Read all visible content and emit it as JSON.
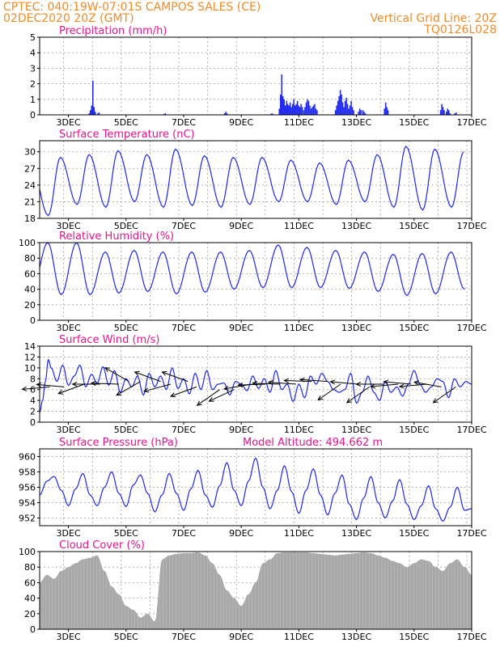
{
  "header": {
    "line1": "CPTEC:   040:19W-07:01S   CAMPOS SALES (CE)",
    "line2_left": "02DEC2020 20Z (GMT)",
    "line2_right": "Vertical Grid Line: 20Z",
    "line3_right": "TQ0126L028"
  },
  "colors": {
    "header": "#f08c28",
    "title": "#e6148c",
    "series": "#1e28f0",
    "cloud": "#a8a8a8"
  },
  "chart_data": [
    {
      "type": "bar",
      "title": "Precipitation (mm/h)",
      "x_tick_labels": [
        "3DEC",
        "5DEC",
        "7DEC",
        "9DEC",
        "11DEC",
        "13DEC",
        "15DEC",
        "17DEC"
      ],
      "xlim_days": [
        2.0,
        17.0
      ],
      "ylim": [
        0,
        5
      ],
      "y_ticks": [
        0,
        1,
        2,
        3,
        4,
        5
      ],
      "grid": true,
      "events": [
        {
          "day": 3.7,
          "values": [
            0.1,
            0.3,
            0.6,
            2.2,
            0.5,
            0.2
          ]
        },
        {
          "day": 4.0,
          "values": [
            0.1,
            0.15
          ]
        },
        {
          "day": 6.3,
          "values": [
            0.05,
            0.1
          ]
        },
        {
          "day": 8.4,
          "values": [
            0.1,
            0.2,
            0.1
          ]
        },
        {
          "day": 10.0,
          "values": [
            0.05,
            0.1,
            0.05
          ]
        },
        {
          "day": 10.3,
          "values": [
            0.4,
            1.3,
            2.6,
            1.2,
            1.0,
            0.6,
            0.9,
            0.7,
            0.6,
            0.8,
            0.5,
            0.7,
            1.0,
            0.6,
            0.7,
            0.9,
            0.6,
            0.5,
            0.7,
            0.5
          ]
        },
        {
          "day": 11.15,
          "values": [
            0.3,
            0.5,
            0.8,
            1.0,
            0.9,
            0.6,
            0.4,
            0.5,
            0.6,
            0.7,
            0.4,
            0.3
          ]
        },
        {
          "day": 12.25,
          "values": [
            0.3,
            0.6,
            0.9,
            1.2,
            1.6,
            1.3,
            0.8,
            0.5,
            0.9,
            1.1,
            0.7,
            0.4,
            0.6,
            0.9,
            0.5,
            0.3
          ]
        },
        {
          "day": 13.05,
          "values": [
            0.2,
            0.4,
            0.3
          ]
        },
        {
          "day": 13.2,
          "values": [
            0.3,
            0.2,
            0.1
          ]
        },
        {
          "day": 13.95,
          "values": [
            0.4,
            0.8,
            0.5,
            0.3
          ]
        },
        {
          "day": 15.9,
          "values": [
            0.3,
            0.7,
            0.5,
            0.3
          ]
        },
        {
          "day": 16.1,
          "values": [
            0.2,
            0.4,
            0.3,
            0.1
          ]
        },
        {
          "day": 16.4,
          "values": [
            0.1,
            0.15
          ]
        }
      ]
    },
    {
      "type": "line",
      "title": "Surface Temperature (nC)",
      "x_tick_labels": [
        "3DEC",
        "5DEC",
        "7DEC",
        "9DEC",
        "11DEC",
        "13DEC",
        "15DEC",
        "17DEC"
      ],
      "xlim_days": [
        2.0,
        17.0
      ],
      "ylim": [
        18,
        32
      ],
      "y_ticks": [
        18,
        21,
        24,
        27,
        30
      ],
      "grid": true,
      "diurnal": {
        "max_day_offset": 0.72,
        "min_day_offset": 0.3
      },
      "daily_max": [
        {
          "day": 1,
          "value": 26.0
        },
        {
          "day": 2,
          "value": 27.5
        },
        {
          "day": 3,
          "value": 29.0
        },
        {
          "day": 4,
          "value": 29.5
        },
        {
          "day": 5,
          "value": 30.2
        },
        {
          "day": 6,
          "value": 29.5
        },
        {
          "day": 7,
          "value": 30.5
        },
        {
          "day": 8,
          "value": 29.3
        },
        {
          "day": 9,
          "value": 29.0
        },
        {
          "day": 10,
          "value": 29.0
        },
        {
          "day": 11,
          "value": 28.5
        },
        {
          "day": 12,
          "value": 28.0
        },
        {
          "day": 13,
          "value": 28.5
        },
        {
          "day": 14,
          "value": 29.5
        },
        {
          "day": 15,
          "value": 31.0
        },
        {
          "day": 16,
          "value": 30.5
        },
        {
          "day": 17,
          "value": 30.0
        }
      ],
      "daily_min": [
        {
          "day": 2,
          "value": 20.5
        },
        {
          "day": 3,
          "value": 18.5
        },
        {
          "day": 4,
          "value": 20.5
        },
        {
          "day": 5,
          "value": 20.0
        },
        {
          "day": 6,
          "value": 21.0
        },
        {
          "day": 7,
          "value": 20.0
        },
        {
          "day": 8,
          "value": 20.3
        },
        {
          "day": 9,
          "value": 20.0
        },
        {
          "day": 10,
          "value": 20.5
        },
        {
          "day": 11,
          "value": 21.0
        },
        {
          "day": 12,
          "value": 21.0
        },
        {
          "day": 13,
          "value": 20.5
        },
        {
          "day": 14,
          "value": 21.0
        },
        {
          "day": 15,
          "value": 20.0
        },
        {
          "day": 16,
          "value": 19.5
        },
        {
          "day": 17,
          "value": 20.0
        }
      ]
    },
    {
      "type": "line",
      "title": "Relative Humidity (%)",
      "x_tick_labels": [
        "3DEC",
        "5DEC",
        "7DEC",
        "9DEC",
        "11DEC",
        "13DEC",
        "15DEC",
        "17DEC"
      ],
      "xlim_days": [
        2.0,
        17.0
      ],
      "ylim": [
        0,
        100
      ],
      "y_ticks": [
        0,
        20,
        40,
        60,
        80,
        100
      ],
      "grid": true,
      "diurnal": {
        "max_day_offset": 0.28,
        "min_day_offset": 0.75
      },
      "daily_max": [
        {
          "day": 2,
          "value": 86
        },
        {
          "day": 3,
          "value": 100
        },
        {
          "day": 4,
          "value": 100
        },
        {
          "day": 5,
          "value": 88
        },
        {
          "day": 6,
          "value": 90
        },
        {
          "day": 7,
          "value": 88
        },
        {
          "day": 8,
          "value": 88
        },
        {
          "day": 9,
          "value": 88
        },
        {
          "day": 10,
          "value": 90
        },
        {
          "day": 11,
          "value": 97
        },
        {
          "day": 12,
          "value": 94
        },
        {
          "day": 13,
          "value": 90
        },
        {
          "day": 14,
          "value": 88
        },
        {
          "day": 15,
          "value": 85
        },
        {
          "day": 16,
          "value": 86
        },
        {
          "day": 17,
          "value": 88
        }
      ],
      "daily_min": [
        {
          "day": 1,
          "value": 42
        },
        {
          "day": 2,
          "value": 40
        },
        {
          "day": 3,
          "value": 33
        },
        {
          "day": 4,
          "value": 33
        },
        {
          "day": 5,
          "value": 35
        },
        {
          "day": 6,
          "value": 37
        },
        {
          "day": 7,
          "value": 34
        },
        {
          "day": 8,
          "value": 36
        },
        {
          "day": 9,
          "value": 40
        },
        {
          "day": 10,
          "value": 42
        },
        {
          "day": 11,
          "value": 42
        },
        {
          "day": 12,
          "value": 42
        },
        {
          "day": 13,
          "value": 41
        },
        {
          "day": 14,
          "value": 37
        },
        {
          "day": 15,
          "value": 32
        },
        {
          "day": 16,
          "value": 34
        },
        {
          "day": 17,
          "value": 40
        }
      ]
    },
    {
      "type": "line",
      "title": "Surface Wind (m/s)",
      "x_tick_labels": [
        "3DEC",
        "5DEC",
        "7DEC",
        "9DEC",
        "11DEC",
        "13DEC",
        "15DEC",
        "17DEC"
      ],
      "xlim_days": [
        2.0,
        17.0
      ],
      "ylim": [
        0,
        14
      ],
      "y_ticks": [
        0,
        2,
        4,
        6,
        8,
        10,
        12,
        14
      ],
      "grid": true,
      "x_days": [
        2.0,
        2.1,
        2.2,
        2.3,
        2.4,
        2.6,
        2.8,
        3.0,
        3.2,
        3.4,
        3.6,
        3.8,
        4.0,
        4.2,
        4.4,
        4.6,
        4.8,
        5.0,
        5.2,
        5.4,
        5.6,
        5.8,
        6.0,
        6.2,
        6.4,
        6.6,
        6.8,
        7.0,
        7.2,
        7.4,
        7.6,
        7.8,
        8.0,
        8.2,
        8.4,
        8.6,
        8.8,
        9.0,
        9.2,
        9.4,
        9.6,
        9.8,
        10.0,
        10.2,
        10.4,
        10.6,
        10.8,
        11.0,
        11.2,
        11.4,
        11.6,
        11.8,
        12.0,
        12.2,
        12.4,
        12.6,
        12.8,
        13.0,
        13.2,
        13.4,
        13.6,
        13.8,
        14.0,
        14.2,
        14.4,
        14.6,
        14.8,
        15.0,
        15.2,
        15.4,
        15.6,
        15.8,
        16.0,
        16.2,
        16.4,
        16.6,
        16.8,
        17.0
      ],
      "values": [
        1.8,
        4.0,
        7.5,
        11.5,
        10.0,
        7.5,
        10.5,
        6.8,
        8.5,
        10.5,
        6.5,
        8.8,
        7.2,
        10.2,
        6.8,
        9.5,
        5.5,
        8.0,
        6.5,
        8.5,
        5.0,
        9.0,
        6.5,
        8.5,
        6.0,
        10.0,
        6.2,
        8.0,
        5.2,
        9.0,
        6.0,
        9.5,
        6.0,
        7.0,
        7.2,
        5.0,
        7.5,
        7.0,
        5.8,
        8.5,
        6.2,
        8.0,
        5.5,
        9.5,
        6.0,
        7.0,
        3.8,
        7.0,
        4.5,
        8.5,
        7.0,
        9.0,
        7.5,
        6.0,
        5.5,
        6.0,
        9.0,
        3.5,
        5.5,
        8.5,
        5.5,
        4.0,
        7.5,
        5.5,
        6.5,
        4.8,
        7.0,
        9.5,
        7.0,
        5.5,
        6.5,
        8.0,
        7.5,
        4.5,
        8.0,
        6.5,
        7.5,
        7.0
      ],
      "vectors": [
        {
          "day": 2.35,
          "speed": 6.5,
          "dir_deg": 185
        },
        {
          "day": 2.85,
          "speed": 6.5,
          "dir_deg": 175
        },
        {
          "day": 3.55,
          "speed": 7.0,
          "dir_deg": 200
        },
        {
          "day": 4.1,
          "speed": 7.0,
          "dir_deg": 180
        },
        {
          "day": 4.75,
          "speed": 7.0,
          "dir_deg": 178
        },
        {
          "day": 5.1,
          "speed": 7.5,
          "dir_deg": 150
        },
        {
          "day": 5.5,
          "speed": 7.5,
          "dir_deg": 210
        },
        {
          "day": 6.2,
          "speed": 7.5,
          "dir_deg": 160
        },
        {
          "day": 6.55,
          "speed": 7.0,
          "dir_deg": 195
        },
        {
          "day": 7.15,
          "speed": 7.5,
          "dir_deg": 160
        },
        {
          "day": 7.45,
          "speed": 6.5,
          "dir_deg": 200
        },
        {
          "day": 8.25,
          "speed": 6.0,
          "dir_deg": 215
        },
        {
          "day": 8.75,
          "speed": 6.0,
          "dir_deg": 205
        },
        {
          "day": 9.35,
          "speed": 7.0,
          "dir_deg": 190
        },
        {
          "day": 9.85,
          "speed": 7.0,
          "dir_deg": 182
        },
        {
          "day": 10.35,
          "speed": 7.0,
          "dir_deg": 178
        },
        {
          "day": 10.9,
          "speed": 7.0,
          "dir_deg": 176
        },
        {
          "day": 11.45,
          "speed": 7.5,
          "dir_deg": 178
        },
        {
          "day": 12.0,
          "speed": 7.5,
          "dir_deg": 176
        },
        {
          "day": 12.45,
          "speed": 7.0,
          "dir_deg": 215
        },
        {
          "day": 13.05,
          "speed": 7.0,
          "dir_deg": 175
        },
        {
          "day": 13.45,
          "speed": 6.5,
          "dir_deg": 215
        },
        {
          "day": 13.95,
          "speed": 7.0,
          "dir_deg": 180
        },
        {
          "day": 14.45,
          "speed": 7.0,
          "dir_deg": 185
        },
        {
          "day": 14.9,
          "speed": 7.0,
          "dir_deg": 175
        },
        {
          "day": 15.45,
          "speed": 7.0,
          "dir_deg": 185
        },
        {
          "day": 15.95,
          "speed": 6.5,
          "dir_deg": 170
        },
        {
          "day": 16.45,
          "speed": 6.5,
          "dir_deg": 215
        }
      ]
    },
    {
      "type": "line",
      "title": "Surface Pressure (hPa)",
      "subtitle": "Model Altitude: 494.662 m",
      "x_tick_labels": [
        "3DEC",
        "5DEC",
        "7DEC",
        "9DEC",
        "11DEC",
        "13DEC",
        "15DEC",
        "17DEC"
      ],
      "xlim_days": [
        2.0,
        17.0
      ],
      "ylim": [
        951,
        961
      ],
      "y_ticks": [
        952,
        954,
        956,
        958,
        960
      ],
      "grid": true,
      "x_days": [
        2.0,
        2.25,
        2.5,
        2.75,
        3.0,
        3.25,
        3.5,
        3.75,
        4.0,
        4.25,
        4.5,
        4.75,
        5.0,
        5.25,
        5.5,
        5.75,
        6.0,
        6.25,
        6.5,
        6.75,
        7.0,
        7.25,
        7.5,
        7.75,
        8.0,
        8.25,
        8.5,
        8.75,
        9.0,
        9.25,
        9.5,
        9.75,
        10.0,
        10.25,
        10.5,
        10.75,
        11.0,
        11.25,
        11.5,
        11.75,
        12.0,
        12.25,
        12.5,
        12.75,
        13.0,
        13.25,
        13.5,
        13.75,
        14.0,
        14.25,
        14.5,
        14.75,
        15.0,
        15.25,
        15.5,
        15.75,
        16.0,
        16.25,
        16.5,
        16.75,
        17.0
      ],
      "values": [
        955.0,
        956.8,
        957.4,
        955.6,
        953.6,
        955.8,
        957.8,
        955.0,
        953.6,
        956.0,
        958.0,
        955.2,
        953.5,
        956.3,
        957.6,
        955.2,
        952.8,
        955.0,
        957.8,
        955.2,
        953.0,
        955.8,
        958.2,
        955.0,
        953.4,
        956.2,
        959.2,
        955.6,
        953.6,
        956.8,
        959.8,
        956.0,
        953.2,
        955.6,
        958.8,
        955.4,
        952.6,
        955.6,
        958.4,
        955.0,
        952.4,
        955.2,
        957.6,
        953.8,
        951.8,
        954.6,
        957.4,
        954.0,
        952.0,
        954.2,
        957.0,
        953.8,
        951.8,
        953.6,
        956.2,
        953.2,
        951.6,
        953.4,
        956.0,
        953.0,
        953.2
      ]
    },
    {
      "type": "area",
      "title": "Cloud Cover (%)",
      "x_tick_labels": [
        "3DEC",
        "5DEC",
        "7DEC",
        "9DEC",
        "11DEC",
        "13DEC",
        "15DEC",
        "17DEC"
      ],
      "xlim_days": [
        2.0,
        17.0
      ],
      "ylim": [
        0,
        100
      ],
      "y_ticks": [
        0,
        20,
        40,
        60,
        80,
        100
      ],
      "grid": true,
      "x_days": [
        2.0,
        2.25,
        2.5,
        2.75,
        3.0,
        3.25,
        3.5,
        3.75,
        4.0,
        4.25,
        4.5,
        4.75,
        5.0,
        5.25,
        5.5,
        5.75,
        6.0,
        6.25,
        6.5,
        6.75,
        7.0,
        7.25,
        7.5,
        7.75,
        8.0,
        8.25,
        8.5,
        8.75,
        9.0,
        9.25,
        9.5,
        9.75,
        10.0,
        10.25,
        10.5,
        10.75,
        11.0,
        11.25,
        11.5,
        11.75,
        12.0,
        12.25,
        12.5,
        12.75,
        13.0,
        13.25,
        13.5,
        13.75,
        14.0,
        14.25,
        14.5,
        14.75,
        15.0,
        15.25,
        15.5,
        15.75,
        16.0,
        16.25,
        16.5,
        16.75,
        17.0
      ],
      "values": [
        60,
        70,
        65,
        75,
        80,
        85,
        90,
        92,
        95,
        75,
        55,
        45,
        30,
        25,
        15,
        20,
        10,
        90,
        95,
        97,
        98,
        98,
        99,
        95,
        85,
        70,
        50,
        40,
        30,
        45,
        60,
        85,
        90,
        98,
        99,
        99,
        99,
        99,
        98,
        97,
        96,
        95,
        96,
        97,
        98,
        99,
        98,
        95,
        92,
        88,
        85,
        80,
        85,
        90,
        88,
        80,
        75,
        85,
        90,
        80,
        70
      ]
    }
  ]
}
